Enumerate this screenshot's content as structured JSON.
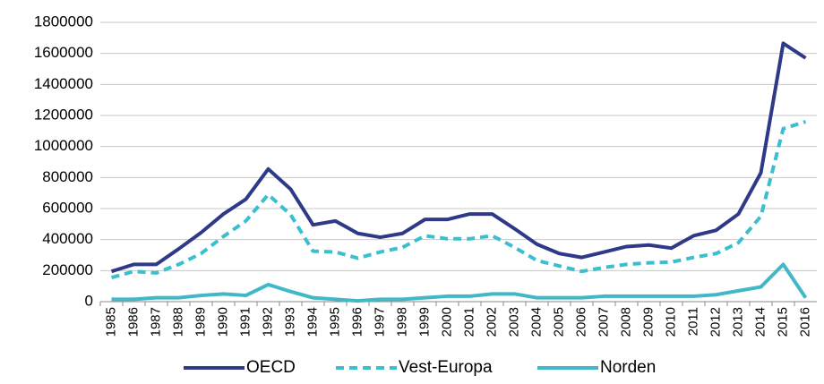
{
  "chart_data": {
    "type": "line",
    "categories": [
      "1985",
      "1986",
      "1987",
      "1988",
      "1989",
      "1990",
      "1991",
      "1992",
      "1993",
      "1994",
      "1995",
      "1996",
      "1997",
      "1998",
      "1999",
      "2000",
      "2001",
      "2002",
      "2003",
      "2004",
      "2005",
      "2006",
      "2007",
      "2008",
      "2009",
      "2010",
      "2011",
      "2012",
      "2013",
      "2014",
      "2015",
      "2016"
    ],
    "series": [
      {
        "name": "OECD",
        "color": "#2e3a87",
        "dashed": false,
        "values": [
          195000,
          240000,
          240000,
          340000,
          445000,
          565000,
          660000,
          855000,
          725000,
          495000,
          520000,
          440000,
          415000,
          440000,
          530000,
          530000,
          565000,
          565000,
          470000,
          370000,
          310000,
          285000,
          320000,
          355000,
          365000,
          345000,
          425000,
          460000,
          565000,
          830000,
          1665000,
          1570000
        ]
      },
      {
        "name": "Vest-Europa",
        "color": "#3bbfcf",
        "dashed": true,
        "values": [
          155000,
          195000,
          185000,
          240000,
          310000,
          420000,
          520000,
          690000,
          560000,
          325000,
          320000,
          280000,
          320000,
          350000,
          425000,
          405000,
          405000,
          425000,
          350000,
          265000,
          230000,
          195000,
          220000,
          240000,
          250000,
          255000,
          285000,
          310000,
          380000,
          550000,
          1115000,
          1160000
        ]
      },
      {
        "name": "Norden",
        "color": "#40b8c8",
        "dashed": false,
        "values": [
          15000,
          15000,
          25000,
          25000,
          40000,
          50000,
          40000,
          110000,
          65000,
          25000,
          15000,
          5000,
          15000,
          15000,
          25000,
          35000,
          35000,
          50000,
          50000,
          25000,
          25000,
          25000,
          35000,
          35000,
          35000,
          35000,
          35000,
          45000,
          70000,
          95000,
          240000,
          25000
        ]
      }
    ],
    "ylim": [
      0,
      1800000
    ],
    "yticks": [
      0,
      200000,
      400000,
      600000,
      800000,
      1000000,
      1200000,
      1400000,
      1600000,
      1800000
    ],
    "grid": true,
    "legend": "bottom"
  }
}
